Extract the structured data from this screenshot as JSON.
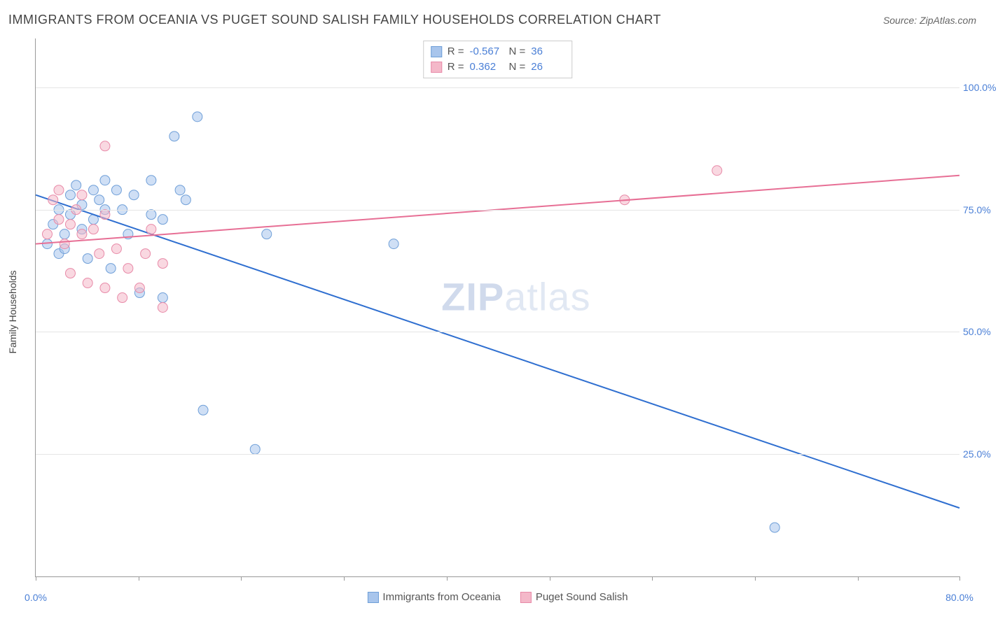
{
  "title": "IMMIGRANTS FROM OCEANIA VS PUGET SOUND SALISH FAMILY HOUSEHOLDS CORRELATION CHART",
  "source_label": "Source: ZipAtlas.com",
  "y_axis_title": "Family Households",
  "watermark": {
    "bold": "ZIP",
    "rest": "atlas"
  },
  "chart": {
    "type": "scatter",
    "xlim": [
      0,
      80
    ],
    "ylim": [
      0,
      110
    ],
    "x_ticks": [
      0,
      8.9,
      17.8,
      26.7,
      35.6,
      44.5,
      53.4,
      62.3,
      71.2,
      80
    ],
    "x_tick_labels": {
      "0": "0.0%",
      "80": "80.0%"
    },
    "y_gridlines": [
      25,
      50,
      75,
      100
    ],
    "y_tick_labels": {
      "25": "25.0%",
      "50": "50.0%",
      "75": "75.0%",
      "100": "100.0%"
    },
    "background_color": "#ffffff",
    "grid_color": "#e5e5e5",
    "axis_color": "#999999",
    "tick_label_color": "#4a7fd6",
    "marker_radius": 7,
    "marker_opacity": 0.55,
    "trendline_width": 2,
    "series": [
      {
        "name": "Immigrants from Oceania",
        "color_fill": "#a8c5ec",
        "color_stroke": "#6f9fd8",
        "line_color": "#2f6fd0",
        "R": "-0.567",
        "N": "36",
        "trendline": {
          "x1": 0,
          "y1": 78,
          "x2": 80,
          "y2": 14
        },
        "points": [
          {
            "x": 1,
            "y": 68
          },
          {
            "x": 1.5,
            "y": 72
          },
          {
            "x": 2,
            "y": 75
          },
          {
            "x": 2,
            "y": 66
          },
          {
            "x": 2.5,
            "y": 70
          },
          {
            "x": 3,
            "y": 78
          },
          {
            "x": 3,
            "y": 74
          },
          {
            "x": 3.5,
            "y": 80
          },
          {
            "x": 4,
            "y": 76
          },
          {
            "x": 4,
            "y": 71
          },
          {
            "x": 4.5,
            "y": 65
          },
          {
            "x": 5,
            "y": 79
          },
          {
            "x": 5,
            "y": 73
          },
          {
            "x": 5.5,
            "y": 77
          },
          {
            "x": 6,
            "y": 75
          },
          {
            "x": 6,
            "y": 81
          },
          {
            "x": 6.5,
            "y": 63
          },
          {
            "x": 7,
            "y": 79
          },
          {
            "x": 7.5,
            "y": 75
          },
          {
            "x": 8,
            "y": 70
          },
          {
            "x": 8.5,
            "y": 78
          },
          {
            "x": 9,
            "y": 58
          },
          {
            "x": 10,
            "y": 74
          },
          {
            "x": 10,
            "y": 81
          },
          {
            "x": 11,
            "y": 57
          },
          {
            "x": 11,
            "y": 73
          },
          {
            "x": 12,
            "y": 90
          },
          {
            "x": 12.5,
            "y": 79
          },
          {
            "x": 13,
            "y": 77
          },
          {
            "x": 14,
            "y": 94
          },
          {
            "x": 14.5,
            "y": 34
          },
          {
            "x": 19,
            "y": 26
          },
          {
            "x": 20,
            "y": 70
          },
          {
            "x": 31,
            "y": 68
          },
          {
            "x": 64,
            "y": 10
          },
          {
            "x": 2.5,
            "y": 67
          }
        ]
      },
      {
        "name": "Puget Sound Salish",
        "color_fill": "#f4b8c9",
        "color_stroke": "#e88aa8",
        "line_color": "#e76f95",
        "R": "0.362",
        "N": "26",
        "trendline": {
          "x1": 0,
          "y1": 68,
          "x2": 80,
          "y2": 82
        },
        "points": [
          {
            "x": 1,
            "y": 70
          },
          {
            "x": 1.5,
            "y": 77
          },
          {
            "x": 2,
            "y": 73
          },
          {
            "x": 2,
            "y": 79
          },
          {
            "x": 2.5,
            "y": 68
          },
          {
            "x": 3,
            "y": 72
          },
          {
            "x": 3,
            "y": 62
          },
          {
            "x": 3.5,
            "y": 75
          },
          {
            "x": 4,
            "y": 70
          },
          {
            "x": 4,
            "y": 78
          },
          {
            "x": 4.5,
            "y": 60
          },
          {
            "x": 5,
            "y": 71
          },
          {
            "x": 5.5,
            "y": 66
          },
          {
            "x": 6,
            "y": 88
          },
          {
            "x": 6,
            "y": 74
          },
          {
            "x": 6,
            "y": 59
          },
          {
            "x": 7,
            "y": 67
          },
          {
            "x": 7.5,
            "y": 57
          },
          {
            "x": 8,
            "y": 63
          },
          {
            "x": 9,
            "y": 59
          },
          {
            "x": 9.5,
            "y": 66
          },
          {
            "x": 10,
            "y": 71
          },
          {
            "x": 11,
            "y": 64
          },
          {
            "x": 11,
            "y": 55
          },
          {
            "x": 51,
            "y": 77
          },
          {
            "x": 59,
            "y": 83
          }
        ]
      }
    ]
  },
  "legend_top": {
    "r_label": "R =",
    "n_label": "N ="
  },
  "legend_bottom": {
    "items": [
      "Immigrants from Oceania",
      "Puget Sound Salish"
    ]
  }
}
